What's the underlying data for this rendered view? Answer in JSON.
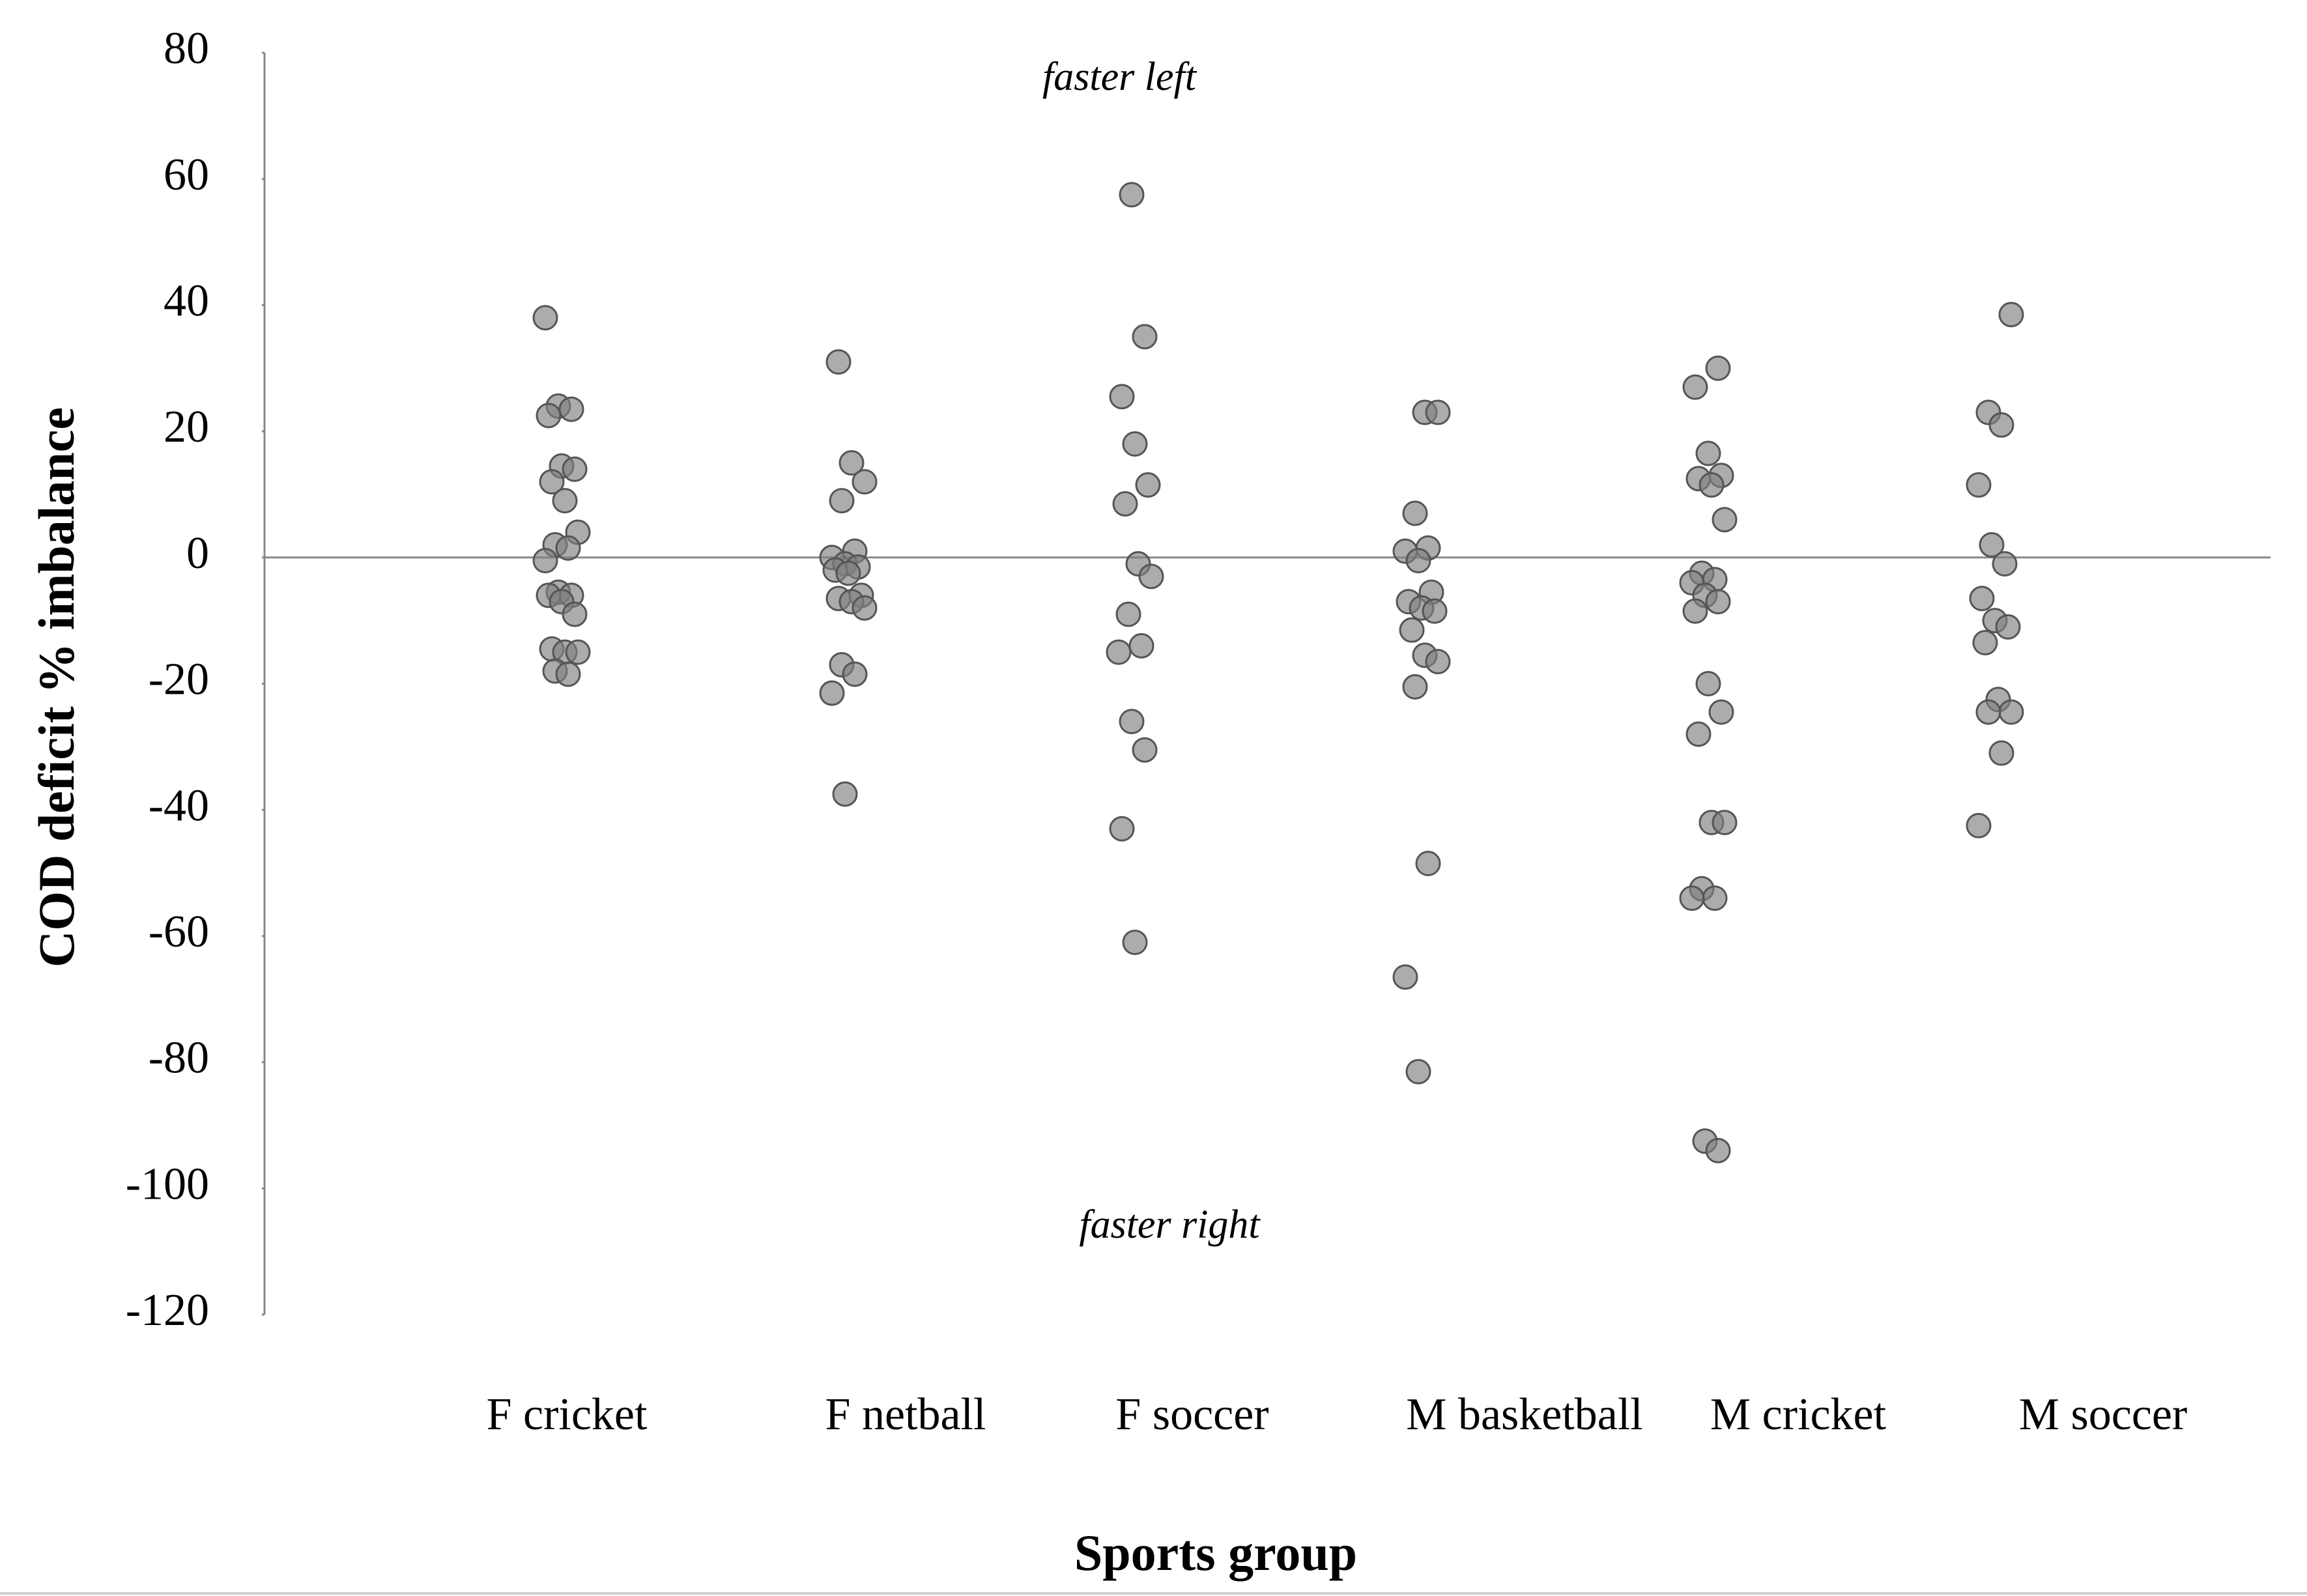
{
  "chart_data": {
    "type": "strip",
    "x_label": "Sports group",
    "y_label": "COD deficit % imbalance",
    "annotations": [
      "faster left",
      "faster right"
    ],
    "categories": [
      "F cricket",
      "F netball",
      "F soccer",
      "M basketball",
      "M cricket",
      "M soccer"
    ],
    "values": [
      [
        38,
        24,
        23.5,
        22.5,
        14.5,
        14,
        12,
        9,
        4,
        2,
        1.5,
        -0.5,
        -5.5,
        -6,
        -6,
        -7,
        -9,
        -14.5,
        -15,
        -15,
        -18,
        -18.5
      ],
      [
        31,
        15,
        12,
        9,
        1,
        0,
        -1,
        -1.5,
        -2,
        -2.5,
        -6,
        -6.5,
        -7,
        -8,
        -17,
        -18.5,
        -21.5,
        -37.5
      ],
      [
        57.5,
        35,
        25.5,
        18,
        11.5,
        8.5,
        -1,
        -3,
        -9,
        -14,
        -15,
        -26,
        -30.5,
        -43,
        -61
      ],
      [
        23,
        23,
        7,
        1.5,
        1,
        -0.5,
        -5.5,
        -7,
        -8,
        -8.5,
        -11.5,
        -15.5,
        -16.5,
        -20.5,
        -48.5,
        -66.5,
        -81.5
      ],
      [
        30,
        27,
        16.5,
        13,
        12.5,
        11.5,
        6,
        -2.5,
        -3.5,
        -4,
        -6,
        -7,
        -8.5,
        -20,
        -24.5,
        -28,
        -42,
        -42,
        -52.5,
        -54,
        -54,
        -92.5,
        -94
      ],
      [
        38.5,
        23,
        21,
        11.5,
        2,
        -1,
        -6.5,
        -10,
        -11,
        -13.5,
        -22.5,
        -24.5,
        -24.5,
        -31,
        -42.5
      ]
    ],
    "color": "#808080",
    "ylim": [
      -120,
      80
    ],
    "yticks": [
      -120,
      -100,
      -80,
      -60,
      -40,
      -20,
      0,
      20,
      40,
      60,
      80
    ],
    "zero_line": true,
    "grid": false
  }
}
